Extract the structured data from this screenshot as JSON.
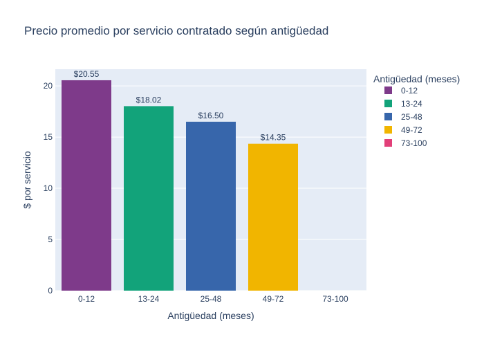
{
  "chart_data": {
    "type": "bar",
    "title": "Precio promedio por servicio contratado según antigüedad",
    "xlabel": "Antigüedad (meses)",
    "ylabel": "$ por servicio",
    "categories": [
      "0-12",
      "13-24",
      "25-48",
      "49-72",
      "73-100"
    ],
    "values": [
      20.55,
      18.02,
      16.5,
      14.35,
      null
    ],
    "value_labels": [
      "$20.55",
      "$18.02",
      "$16.50",
      "$14.35",
      ""
    ],
    "colors": [
      "#7e3a8a",
      "#12a37a",
      "#3766ab",
      "#f1b500",
      "#e23f79"
    ],
    "ylim": [
      0,
      21.63
    ],
    "yticks": [
      0,
      5,
      10,
      15,
      20
    ],
    "grid": true,
    "plot_background": "#e5ecf6",
    "legend": {
      "title": "Antigüedad (meses)",
      "placement": "right",
      "entries": [
        "0-12",
        "13-24",
        "25-48",
        "49-72",
        "73-100"
      ]
    }
  }
}
